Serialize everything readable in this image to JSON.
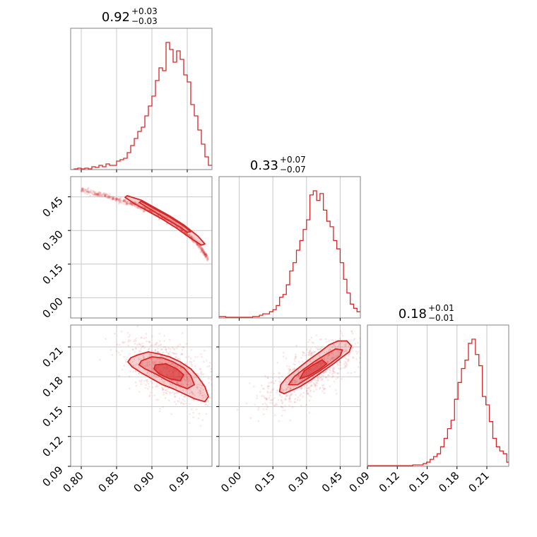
{
  "chart_data": {
    "type": "corner",
    "color": "#d62728",
    "parameters": [
      {
        "range": [
          0.785,
          0.985
        ],
        "ticks": [
          "0.80",
          "0.85",
          "0.90",
          "0.95"
        ],
        "tick_values": [
          0.8,
          0.85,
          0.9,
          0.95
        ],
        "title": {
          "median": "0.92",
          "plus": "+0.03",
          "minus": "−0.03"
        }
      },
      {
        "range": [
          -0.09,
          0.54
        ],
        "ticks": [
          "0.00",
          "0.15",
          "0.30",
          "0.45"
        ],
        "tick_values": [
          0.0,
          0.15,
          0.3,
          0.45
        ],
        "title": {
          "median": "0.33",
          "plus": "+0.07",
          "minus": "−0.07"
        }
      },
      {
        "range": [
          0.09,
          0.232
        ],
        "ticks": [
          "0.09",
          "0.12",
          "0.15",
          "0.18",
          "0.21"
        ],
        "tick_values": [
          0.09,
          0.12,
          0.15,
          0.18,
          0.21
        ],
        "title": {
          "median": "0.18",
          "plus": "+0.01",
          "minus": "−0.01"
        }
      }
    ],
    "histograms": [
      {
        "param": 0,
        "x": [
          0.785,
          0.79,
          0.795,
          0.8,
          0.805,
          0.81,
          0.815,
          0.82,
          0.825,
          0.83,
          0.835,
          0.84,
          0.845,
          0.85,
          0.855,
          0.86,
          0.865,
          0.87,
          0.875,
          0.88,
          0.885,
          0.89,
          0.895,
          0.9,
          0.905,
          0.91,
          0.915,
          0.92,
          0.925,
          0.93,
          0.935,
          0.94,
          0.945,
          0.95,
          0.955,
          0.96,
          0.965,
          0.97,
          0.975,
          0.98
        ],
        "density": [
          0,
          0.005,
          0.01,
          0.005,
          0.01,
          0.005,
          0.02,
          0.015,
          0.03,
          0.02,
          0.04,
          0.03,
          0.03,
          0.06,
          0.07,
          0.08,
          0.12,
          0.17,
          0.22,
          0.27,
          0.3,
          0.38,
          0.45,
          0.52,
          0.63,
          0.72,
          0.7,
          0.9,
          0.85,
          0.76,
          0.84,
          0.78,
          0.67,
          0.62,
          0.46,
          0.38,
          0.28,
          0.18,
          0.09,
          0.03
        ]
      },
      {
        "param": 1,
        "x": [
          -0.09,
          -0.075,
          -0.06,
          -0.045,
          -0.03,
          -0.015,
          0.0,
          0.015,
          0.03,
          0.045,
          0.06,
          0.075,
          0.09,
          0.105,
          0.12,
          0.135,
          0.15,
          0.165,
          0.18,
          0.195,
          0.21,
          0.225,
          0.24,
          0.255,
          0.27,
          0.285,
          0.3,
          0.315,
          0.33,
          0.345,
          0.36,
          0.375,
          0.39,
          0.405,
          0.42,
          0.435,
          0.45,
          0.465,
          0.48,
          0.495,
          0.51,
          0.525
        ],
        "density": [
          0.01,
          0.01,
          0.005,
          0.005,
          0.005,
          0.005,
          0.005,
          0.005,
          0.005,
          0.005,
          0.01,
          0.01,
          0.02,
          0.03,
          0.03,
          0.045,
          0.06,
          0.09,
          0.15,
          0.17,
          0.24,
          0.34,
          0.4,
          0.49,
          0.56,
          0.64,
          0.71,
          0.89,
          0.92,
          0.85,
          0.9,
          0.78,
          0.7,
          0.66,
          0.56,
          0.5,
          0.4,
          0.28,
          0.18,
          0.1,
          0.07,
          0.045
        ]
      },
      {
        "param": 2,
        "x": [
          0.09,
          0.0935,
          0.097,
          0.1005,
          0.104,
          0.1075,
          0.111,
          0.1145,
          0.118,
          0.1215,
          0.125,
          0.1285,
          0.132,
          0.1355,
          0.139,
          0.1425,
          0.146,
          0.1495,
          0.153,
          0.1565,
          0.16,
          0.1635,
          0.167,
          0.1705,
          0.174,
          0.1775,
          0.181,
          0.1845,
          0.188,
          0.1915,
          0.195,
          0.1985,
          0.202,
          0.2055,
          0.209,
          0.2125,
          0.216,
          0.2195,
          0.223,
          0.2265,
          0.23
        ],
        "density": [
          0.005,
          0.005,
          0.005,
          0.005,
          0.005,
          0.005,
          0.005,
          0.005,
          0.005,
          0.005,
          0.005,
          0.005,
          0.005,
          0.01,
          0.01,
          0.01,
          0.02,
          0.03,
          0.05,
          0.07,
          0.09,
          0.14,
          0.2,
          0.27,
          0.33,
          0.48,
          0.6,
          0.7,
          0.76,
          0.88,
          0.91,
          0.8,
          0.72,
          0.5,
          0.44,
          0.32,
          0.2,
          0.14,
          0.11,
          0.09,
          0.03
        ]
      }
    ],
    "scatter_2d": [
      {
        "x_param": 0,
        "y_param": 1,
        "description_points": [
          [
            0.8,
            0.48
          ],
          [
            0.82,
            0.465
          ],
          [
            0.84,
            0.45
          ],
          [
            0.86,
            0.43
          ],
          [
            0.88,
            0.41
          ],
          [
            0.9,
            0.385
          ],
          [
            0.92,
            0.35
          ],
          [
            0.94,
            0.31
          ],
          [
            0.955,
            0.27
          ],
          [
            0.97,
            0.22
          ],
          [
            0.98,
            0.17
          ]
        ],
        "contours": [
          [
            [
              0.865,
              0.455
            ],
            [
              0.885,
              0.435
            ],
            [
              0.905,
              0.4
            ],
            [
              0.925,
              0.365
            ],
            [
              0.945,
              0.325
            ],
            [
              0.965,
              0.275
            ],
            [
              0.975,
              0.24
            ],
            [
              0.97,
              0.235
            ],
            [
              0.955,
              0.265
            ],
            [
              0.935,
              0.31
            ],
            [
              0.915,
              0.35
            ],
            [
              0.895,
              0.385
            ],
            [
              0.875,
              0.42
            ],
            [
              0.862,
              0.448
            ]
          ],
          [
            [
              0.885,
              0.43
            ],
            [
              0.905,
              0.395
            ],
            [
              0.925,
              0.36
            ],
            [
              0.945,
              0.32
            ],
            [
              0.955,
              0.295
            ],
            [
              0.95,
              0.292
            ],
            [
              0.94,
              0.315
            ],
            [
              0.92,
              0.352
            ],
            [
              0.9,
              0.39
            ],
            [
              0.882,
              0.425
            ]
          ]
        ]
      },
      {
        "x_param": 0,
        "y_param": 2,
        "center": [
          0.925,
          0.185
        ],
        "contours": [
          [
            [
              0.87,
              0.199
            ],
            [
              0.88,
              0.202
            ],
            [
              0.895,
              0.205
            ],
            [
              0.91,
              0.203
            ],
            [
              0.925,
              0.2
            ],
            [
              0.94,
              0.195
            ],
            [
              0.955,
              0.188
            ],
            [
              0.965,
              0.18
            ],
            [
              0.975,
              0.17
            ],
            [
              0.98,
              0.16
            ],
            [
              0.975,
              0.155
            ],
            [
              0.96,
              0.158
            ],
            [
              0.945,
              0.163
            ],
            [
              0.93,
              0.168
            ],
            [
              0.915,
              0.172
            ],
            [
              0.9,
              0.178
            ],
            [
              0.885,
              0.184
            ],
            [
              0.872,
              0.19
            ],
            [
              0.866,
              0.195
            ]
          ],
          [
            [
              0.885,
              0.196
            ],
            [
              0.9,
              0.2
            ],
            [
              0.915,
              0.199
            ],
            [
              0.93,
              0.195
            ],
            [
              0.945,
              0.189
            ],
            [
              0.955,
              0.181
            ],
            [
              0.96,
              0.172
            ],
            [
              0.95,
              0.168
            ],
            [
              0.935,
              0.172
            ],
            [
              0.92,
              0.177
            ],
            [
              0.905,
              0.183
            ],
            [
              0.89,
              0.188
            ],
            [
              0.882,
              0.192
            ]
          ],
          [
            [
              0.905,
              0.192
            ],
            [
              0.92,
              0.193
            ],
            [
              0.935,
              0.188
            ],
            [
              0.945,
              0.182
            ],
            [
              0.94,
              0.176
            ],
            [
              0.925,
              0.178
            ],
            [
              0.91,
              0.183
            ],
            [
              0.903,
              0.188
            ]
          ]
        ]
      },
      {
        "x_param": 1,
        "y_param": 2,
        "center": [
          0.33,
          0.185
        ],
        "contours": [
          [
            [
              0.18,
              0.165
            ],
            [
              0.2,
              0.163
            ],
            [
              0.23,
              0.166
            ],
            [
              0.27,
              0.17
            ],
            [
              0.32,
              0.177
            ],
            [
              0.37,
              0.185
            ],
            [
              0.42,
              0.193
            ],
            [
              0.46,
              0.2
            ],
            [
              0.49,
              0.205
            ],
            [
              0.5,
              0.211
            ],
            [
              0.48,
              0.216
            ],
            [
              0.44,
              0.216
            ],
            [
              0.4,
              0.212
            ],
            [
              0.36,
              0.205
            ],
            [
              0.31,
              0.197
            ],
            [
              0.26,
              0.188
            ],
            [
              0.21,
              0.179
            ],
            [
              0.185,
              0.172
            ]
          ],
          [
            [
              0.22,
              0.172
            ],
            [
              0.26,
              0.172
            ],
            [
              0.31,
              0.179
            ],
            [
              0.36,
              0.186
            ],
            [
              0.41,
              0.194
            ],
            [
              0.45,
              0.201
            ],
            [
              0.46,
              0.207
            ],
            [
              0.43,
              0.208
            ],
            [
              0.39,
              0.203
            ],
            [
              0.34,
              0.196
            ],
            [
              0.29,
              0.188
            ],
            [
              0.245,
              0.18
            ]
          ],
          [
            [
              0.27,
              0.178
            ],
            [
              0.31,
              0.181
            ],
            [
              0.355,
              0.187
            ],
            [
              0.39,
              0.193
            ],
            [
              0.37,
              0.197
            ],
            [
              0.33,
              0.192
            ],
            [
              0.29,
              0.186
            ]
          ]
        ]
      }
    ],
    "grid": true
  }
}
